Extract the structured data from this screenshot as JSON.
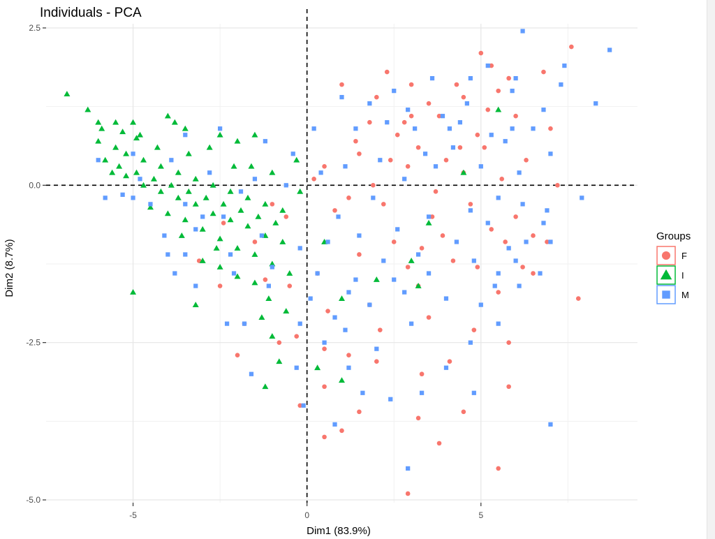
{
  "chart_data": {
    "type": "scatter",
    "title": "Individuals - PCA",
    "xlabel": "Dim1 (83.9%)",
    "ylabel": "Dim2 (8.7%)",
    "xlim": [
      -7.5,
      9.5
    ],
    "ylim": [
      -5.0,
      2.5
    ],
    "x_ticks": [
      -5,
      0,
      5
    ],
    "x_tick_labels": [
      "-5",
      "0",
      "5"
    ],
    "y_ticks": [
      2.5,
      0.0,
      -2.5,
      -5.0
    ],
    "y_tick_labels": [
      "2.5",
      "0.0",
      "-2.5",
      "-5.0"
    ],
    "reference_lines": {
      "x": 0,
      "y": 0,
      "style": "dashed"
    },
    "grid": true,
    "legend": {
      "title": "Groups",
      "placement": "right"
    },
    "series": [
      {
        "name": "F",
        "marker": "circle",
        "color": "#F8766D",
        "points": [
          [
            7.6,
            2.2
          ],
          [
            6.8,
            1.8
          ],
          [
            5.0,
            2.1
          ],
          [
            5.3,
            1.9
          ],
          [
            5.5,
            1.5
          ],
          [
            5.8,
            1.7
          ],
          [
            4.3,
            1.6
          ],
          [
            2.3,
            1.8
          ],
          [
            3.0,
            1.6
          ],
          [
            1.0,
            1.6
          ],
          [
            2.0,
            1.4
          ],
          [
            3.5,
            1.3
          ],
          [
            4.5,
            1.4
          ],
          [
            5.2,
            1.2
          ],
          [
            3.8,
            1.1
          ],
          [
            2.8,
            1.0
          ],
          [
            6.0,
            1.1
          ],
          [
            7.0,
            0.9
          ],
          [
            4.9,
            0.8
          ],
          [
            3.2,
            0.6
          ],
          [
            4.0,
            0.4
          ],
          [
            4.5,
            0.2
          ],
          [
            5.6,
            0.1
          ],
          [
            1.5,
            0.5
          ],
          [
            0.5,
            0.3
          ],
          [
            0.8,
            -0.4
          ],
          [
            2.2,
            -0.3
          ],
          [
            3.6,
            -0.5
          ],
          [
            2.5,
            -0.9
          ],
          [
            3.9,
            -0.8
          ],
          [
            5.3,
            -0.7
          ],
          [
            6.0,
            -0.5
          ],
          [
            6.9,
            -0.9
          ],
          [
            5.7,
            -0.9
          ],
          [
            4.2,
            -1.2
          ],
          [
            2.9,
            -1.3
          ],
          [
            1.5,
            -1.1
          ],
          [
            0.3,
            -1.4
          ],
          [
            4.9,
            -1.3
          ],
          [
            6.2,
            -1.3
          ],
          [
            3.2,
            -1.6
          ],
          [
            1.8,
            -1.9
          ],
          [
            0.6,
            -2.0
          ],
          [
            -0.5,
            -1.6
          ],
          [
            -1.2,
            -1.5
          ],
          [
            -2.5,
            -1.6
          ],
          [
            -1.8,
            -2.2
          ],
          [
            -2.0,
            -2.7
          ],
          [
            -0.8,
            -2.5
          ],
          [
            0.5,
            -2.6
          ],
          [
            1.2,
            -2.7
          ],
          [
            2.0,
            -2.8
          ],
          [
            3.5,
            -2.1
          ],
          [
            4.8,
            -2.3
          ],
          [
            5.5,
            -1.7
          ],
          [
            7.8,
            -1.8
          ],
          [
            6.5,
            -1.4
          ],
          [
            3.3,
            -3.0
          ],
          [
            0.5,
            -3.2
          ],
          [
            -0.2,
            -3.5
          ],
          [
            1.5,
            -3.6
          ],
          [
            3.2,
            -3.7
          ],
          [
            1.0,
            -3.9
          ],
          [
            0.5,
            -4.0
          ],
          [
            3.8,
            -4.1
          ],
          [
            5.5,
            -4.5
          ],
          [
            2.9,
            -4.9
          ],
          [
            5.8,
            -3.2
          ],
          [
            6.5,
            -0.8
          ],
          [
            7.2,
            0.0
          ],
          [
            4.4,
            0.6
          ],
          [
            2.6,
            0.8
          ],
          [
            1.8,
            1.0
          ],
          [
            -2.4,
            -0.6
          ],
          [
            -1.5,
            -0.9
          ],
          [
            -3.1,
            -1.2
          ],
          [
            -0.3,
            -2.4
          ],
          [
            2.1,
            -2.3
          ],
          [
            4.1,
            -2.8
          ],
          [
            3.7,
            -0.1
          ],
          [
            1.2,
            -0.2
          ],
          [
            2.9,
            0.3
          ],
          [
            3.3,
            -1.0
          ],
          [
            1.9,
            0.0
          ],
          [
            -0.6,
            -0.5
          ],
          [
            5.1,
            0.6
          ],
          [
            6.3,
            0.4
          ],
          [
            4.7,
            -0.3
          ],
          [
            2.4,
            0.4
          ],
          [
            3.0,
            1.1
          ],
          [
            1.4,
            0.7
          ],
          [
            0.2,
            0.1
          ],
          [
            -1.0,
            -0.3
          ],
          [
            5.8,
            -2.5
          ],
          [
            4.5,
            -3.6
          ]
        ]
      },
      {
        "name": "I",
        "marker": "triangle",
        "color": "#00BA38",
        "points": [
          [
            -6.9,
            1.45
          ],
          [
            -6.3,
            1.2
          ],
          [
            -6.0,
            1.0
          ],
          [
            -5.5,
            1.0
          ],
          [
            -5.0,
            1.0
          ],
          [
            -4.8,
            0.8
          ],
          [
            -4.0,
            1.1
          ],
          [
            -3.8,
            1.0
          ],
          [
            -3.5,
            0.9
          ],
          [
            -2.5,
            0.8
          ],
          [
            -2.0,
            0.7
          ],
          [
            -1.5,
            0.8
          ],
          [
            -6.0,
            0.7
          ],
          [
            -5.5,
            0.6
          ],
          [
            -5.2,
            0.5
          ],
          [
            -4.7,
            0.4
          ],
          [
            -4.2,
            0.3
          ],
          [
            -3.7,
            0.2
          ],
          [
            -3.2,
            0.1
          ],
          [
            -2.7,
            0.0
          ],
          [
            -2.2,
            -0.1
          ],
          [
            -1.7,
            -0.2
          ],
          [
            -1.2,
            -0.3
          ],
          [
            -0.7,
            -0.4
          ],
          [
            -5.8,
            0.4
          ],
          [
            -5.4,
            0.3
          ],
          [
            -4.9,
            0.2
          ],
          [
            -4.4,
            0.1
          ],
          [
            -3.9,
            0.0
          ],
          [
            -3.4,
            -0.1
          ],
          [
            -2.9,
            -0.2
          ],
          [
            -2.4,
            -0.3
          ],
          [
            -1.9,
            -0.4
          ],
          [
            -1.4,
            -0.5
          ],
          [
            -0.9,
            -0.6
          ],
          [
            -5.6,
            0.2
          ],
          [
            -5.2,
            0.15
          ],
          [
            -4.7,
            0.0
          ],
          [
            -4.2,
            -0.1
          ],
          [
            -3.7,
            -0.2
          ],
          [
            -3.2,
            -0.3
          ],
          [
            -2.7,
            -0.45
          ],
          [
            -2.2,
            -0.55
          ],
          [
            -1.7,
            -0.65
          ],
          [
            -1.2,
            -0.8
          ],
          [
            -0.7,
            -0.9
          ],
          [
            -4.5,
            -0.35
          ],
          [
            -4.0,
            -0.45
          ],
          [
            -3.5,
            -0.55
          ],
          [
            -3.0,
            -0.7
          ],
          [
            -2.5,
            -0.85
          ],
          [
            -2.0,
            -1.0
          ],
          [
            -1.5,
            -1.1
          ],
          [
            -1.0,
            -1.25
          ],
          [
            -0.5,
            -1.4
          ],
          [
            -3.0,
            -1.2
          ],
          [
            -2.5,
            -1.3
          ],
          [
            -2.0,
            -1.45
          ],
          [
            -1.5,
            -1.55
          ],
          [
            -5.0,
            -1.7
          ],
          [
            -3.2,
            -1.9
          ],
          [
            -1.1,
            -1.8
          ],
          [
            -0.6,
            -2.0
          ],
          [
            -1.3,
            -2.1
          ],
          [
            -1.0,
            -2.4
          ],
          [
            -0.8,
            -2.8
          ],
          [
            -1.2,
            -3.2
          ],
          [
            0.3,
            -2.9
          ],
          [
            1.0,
            -3.1
          ],
          [
            2.0,
            -1.5
          ],
          [
            3.0,
            -1.2
          ],
          [
            3.2,
            -1.6
          ],
          [
            3.5,
            -0.6
          ],
          [
            4.5,
            0.2
          ],
          [
            5.5,
            1.2
          ],
          [
            1.0,
            -1.8
          ],
          [
            0.5,
            -0.9
          ],
          [
            -0.2,
            -0.1
          ],
          [
            -1.6,
            0.3
          ],
          [
            -2.8,
            0.6
          ],
          [
            -3.4,
            0.5
          ],
          [
            -4.3,
            0.6
          ],
          [
            -4.9,
            0.75
          ],
          [
            -5.9,
            0.9
          ],
          [
            -5.3,
            0.85
          ],
          [
            -0.3,
            0.4
          ],
          [
            -1.0,
            0.2
          ],
          [
            -2.1,
            0.3
          ],
          [
            -3.6,
            -0.8
          ],
          [
            -2.6,
            -1.0
          ]
        ]
      },
      {
        "name": "M",
        "marker": "square",
        "color": "#619CFF",
        "points": [
          [
            6.2,
            2.45
          ],
          [
            8.7,
            2.15
          ],
          [
            8.3,
            1.3
          ],
          [
            7.4,
            1.9
          ],
          [
            7.3,
            1.6
          ],
          [
            6.0,
            1.7
          ],
          [
            5.2,
            1.9
          ],
          [
            4.7,
            1.7
          ],
          [
            3.6,
            1.7
          ],
          [
            2.5,
            1.5
          ],
          [
            1.0,
            1.4
          ],
          [
            1.8,
            1.3
          ],
          [
            2.9,
            1.2
          ],
          [
            3.9,
            1.1
          ],
          [
            4.6,
            1.3
          ],
          [
            5.9,
            1.5
          ],
          [
            6.8,
            1.2
          ],
          [
            6.5,
            0.9
          ],
          [
            5.7,
            0.7
          ],
          [
            4.2,
            0.6
          ],
          [
            3.4,
            0.5
          ],
          [
            2.1,
            0.4
          ],
          [
            1.1,
            0.3
          ],
          [
            0.4,
            0.2
          ],
          [
            -0.4,
            0.5
          ],
          [
            -1.2,
            0.7
          ],
          [
            -2.5,
            0.9
          ],
          [
            -3.5,
            0.8
          ],
          [
            -5.0,
            0.5
          ],
          [
            -6.0,
            0.4
          ],
          [
            -5.0,
            -0.2
          ],
          [
            -5.3,
            -0.15
          ],
          [
            -3.5,
            -0.3
          ],
          [
            -2.4,
            -0.5
          ],
          [
            -1.3,
            -0.8
          ],
          [
            -0.2,
            -1.0
          ],
          [
            0.6,
            -0.9
          ],
          [
            1.5,
            -0.8
          ],
          [
            2.6,
            -0.7
          ],
          [
            3.5,
            -0.5
          ],
          [
            4.7,
            -0.4
          ],
          [
            6.2,
            -0.3
          ],
          [
            7.9,
            -0.2
          ],
          [
            6.9,
            -0.4
          ],
          [
            5.2,
            -0.6
          ],
          [
            6.3,
            -0.9
          ],
          [
            7.0,
            -0.9
          ],
          [
            6.0,
            -1.2
          ],
          [
            5.5,
            -1.4
          ],
          [
            6.7,
            -1.4
          ],
          [
            6.1,
            -1.6
          ],
          [
            5.0,
            -1.9
          ],
          [
            4.0,
            -1.8
          ],
          [
            2.8,
            -1.7
          ],
          [
            1.8,
            -1.9
          ],
          [
            0.8,
            -2.1
          ],
          [
            -0.2,
            -2.2
          ],
          [
            -1.8,
            -2.2
          ],
          [
            -2.3,
            -2.2
          ],
          [
            -3.5,
            -1.1
          ],
          [
            -4.0,
            -1.1
          ],
          [
            -3.8,
            -1.4
          ],
          [
            -3.2,
            -1.6
          ],
          [
            -2.1,
            -1.4
          ],
          [
            -1.0,
            -1.3
          ],
          [
            0.3,
            -1.4
          ],
          [
            1.4,
            -1.5
          ],
          [
            2.5,
            -1.5
          ],
          [
            3.5,
            -1.4
          ],
          [
            4.8,
            -1.2
          ],
          [
            5.4,
            -1.6
          ],
          [
            4.7,
            -2.5
          ],
          [
            4.0,
            -2.9
          ],
          [
            3.3,
            -3.3
          ],
          [
            2.4,
            -3.4
          ],
          [
            1.6,
            -3.3
          ],
          [
            1.2,
            -2.9
          ],
          [
            0.5,
            -2.5
          ],
          [
            -0.3,
            -2.9
          ],
          [
            -1.6,
            -3.0
          ],
          [
            -0.1,
            -3.5
          ],
          [
            0.8,
            -3.8
          ],
          [
            2.9,
            -4.5
          ],
          [
            4.8,
            -3.3
          ],
          [
            7.0,
            -3.8
          ],
          [
            5.5,
            -2.2
          ],
          [
            3.0,
            -2.2
          ],
          [
            2.0,
            -2.6
          ],
          [
            1.1,
            -2.3
          ],
          [
            -1.9,
            -0.1
          ],
          [
            -4.5,
            -0.3
          ],
          [
            -5.8,
            -0.2
          ],
          [
            -4.1,
            -0.8
          ],
          [
            -3.0,
            -0.5
          ],
          [
            4.1,
            0.9
          ],
          [
            3.1,
            0.9
          ],
          [
            2.3,
            1.0
          ],
          [
            1.4,
            0.9
          ],
          [
            0.2,
            0.9
          ],
          [
            5.0,
            0.3
          ],
          [
            5.5,
            -0.2
          ],
          [
            7.0,
            0.5
          ],
          [
            6.1,
            0.2
          ],
          [
            5.9,
            0.9
          ],
          [
            4.4,
            1.0
          ],
          [
            3.7,
            0.3
          ],
          [
            2.8,
            0.1
          ],
          [
            1.9,
            -0.2
          ],
          [
            0.9,
            -0.5
          ],
          [
            -0.6,
            0.0
          ],
          [
            -1.5,
            0.1
          ],
          [
            -2.8,
            0.2
          ],
          [
            -3.9,
            0.4
          ],
          [
            -4.8,
            0.1
          ],
          [
            -3.2,
            -0.7
          ],
          [
            -2.2,
            -1.1
          ],
          [
            -1.1,
            -1.6
          ],
          [
            0.1,
            -1.8
          ],
          [
            1.2,
            -1.7
          ],
          [
            2.2,
            -1.2
          ],
          [
            3.2,
            -1.1
          ],
          [
            4.3,
            -0.9
          ],
          [
            5.8,
            -1.0
          ],
          [
            6.8,
            -0.6
          ],
          [
            5.3,
            0.8
          ]
        ]
      }
    ]
  }
}
